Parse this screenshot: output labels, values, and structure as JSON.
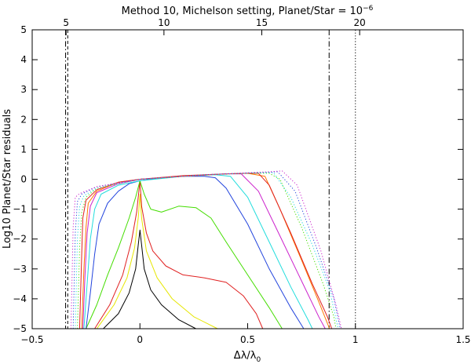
{
  "chart_data": {
    "type": "line",
    "title_main": "Method 10, Michelson setting, Planet/Star = 10",
    "title_exponent": "−6",
    "xlabel_main": "Δλ/λ",
    "xlabel_sub": "0",
    "ylabel": "Log10 Planet/Star residuals",
    "xlim": [
      -0.5,
      1.5
    ],
    "ylim": [
      -5,
      5
    ],
    "x_ticks": [
      -0.5,
      0,
      0.5,
      1,
      1.5
    ],
    "x_tick_labels": [
      "−0.5",
      "0",
      "0.5",
      "1",
      "1.5"
    ],
    "y_ticks": [
      -5,
      -4,
      -3,
      -2,
      -1,
      0,
      1,
      2,
      3,
      4,
      5
    ],
    "y_tick_labels": [
      "−5",
      "−4",
      "−3",
      "−2",
      "−1",
      "0",
      "1",
      "2",
      "3",
      "4",
      "5"
    ],
    "top_axis": {
      "ticks": [
        {
          "value": 5,
          "label": "5",
          "x": -0.3426
        },
        {
          "value": 10,
          "label": "10",
          "x": 0.1115
        },
        {
          "value": 15,
          "label": "15",
          "x": 0.5656
        },
        {
          "value": 20,
          "label": "20",
          "x": 1.0197
        }
      ]
    },
    "vlines": [
      {
        "x": -0.345,
        "style": "dashdot",
        "color": "#000000"
      },
      {
        "x": -0.335,
        "style": "dashed",
        "color": "#000000"
      },
      {
        "x": 0.878,
        "style": "dashdot",
        "color": "#000000"
      },
      {
        "x": 1.0,
        "style": "dotted",
        "color": "#000000"
      }
    ],
    "grid": false,
    "legend": "none",
    "series": [
      {
        "color": "#000000",
        "style": "solid",
        "points": [
          [
            -0.17,
            -5
          ],
          [
            -0.1,
            -4.5
          ],
          [
            -0.05,
            -3.8
          ],
          [
            -0.02,
            -3.0
          ],
          [
            -0.008,
            -2.2
          ],
          [
            0,
            -1.7
          ],
          [
            0.008,
            -2.2
          ],
          [
            0.02,
            -3.0
          ],
          [
            0.05,
            -3.7
          ],
          [
            0.1,
            -4.2
          ],
          [
            0.18,
            -4.7
          ],
          [
            0.26,
            -5
          ]
        ]
      },
      {
        "color": "#e6e600",
        "style": "solid",
        "points": [
          [
            -0.2,
            -5
          ],
          [
            -0.12,
            -4.2
          ],
          [
            -0.06,
            -3.3
          ],
          [
            -0.025,
            -2.3
          ],
          [
            -0.008,
            -1.3
          ],
          [
            0,
            -0.5
          ],
          [
            0.008,
            -1.3
          ],
          [
            0.03,
            -2.4
          ],
          [
            0.08,
            -3.3
          ],
          [
            0.15,
            -4.0
          ],
          [
            0.25,
            -4.6
          ],
          [
            0.36,
            -5
          ]
        ]
      },
      {
        "color": "#e02020",
        "style": "solid",
        "points": [
          [
            -0.21,
            -5
          ],
          [
            -0.14,
            -4.2
          ],
          [
            -0.08,
            -3.2
          ],
          [
            -0.04,
            -2.1
          ],
          [
            -0.015,
            -1.1
          ],
          [
            0,
            -0.05
          ],
          [
            0.008,
            -0.9
          ],
          [
            0.03,
            -1.8
          ],
          [
            0.06,
            -2.4
          ],
          [
            0.12,
            -2.9
          ],
          [
            0.2,
            -3.2
          ],
          [
            0.3,
            -3.3
          ],
          [
            0.4,
            -3.45
          ],
          [
            0.48,
            -3.9
          ],
          [
            0.54,
            -4.5
          ],
          [
            0.57,
            -5
          ]
        ]
      },
      {
        "color": "#44dd00",
        "style": "solid",
        "points": [
          [
            -0.25,
            -5
          ],
          [
            -0.2,
            -4.2
          ],
          [
            -0.15,
            -3.2
          ],
          [
            -0.1,
            -2.3
          ],
          [
            -0.05,
            -1.3
          ],
          [
            -0.02,
            -0.6
          ],
          [
            0,
            -0.05
          ],
          [
            0.02,
            -0.5
          ],
          [
            0.05,
            -1.0
          ],
          [
            0.1,
            -1.1
          ],
          [
            0.18,
            -0.9
          ],
          [
            0.26,
            -0.95
          ],
          [
            0.33,
            -1.3
          ],
          [
            0.4,
            -2.1
          ],
          [
            0.5,
            -3.2
          ],
          [
            0.6,
            -4.3
          ],
          [
            0.66,
            -5
          ]
        ]
      },
      {
        "color": "#2244dd",
        "style": "solid",
        "points": [
          [
            -0.25,
            -5
          ],
          [
            -0.23,
            -3.8
          ],
          [
            -0.21,
            -2.5
          ],
          [
            -0.19,
            -1.5
          ],
          [
            -0.15,
            -0.8
          ],
          [
            -0.1,
            -0.4
          ],
          [
            -0.05,
            -0.15
          ],
          [
            0,
            -0.05
          ],
          [
            0.1,
            0.05
          ],
          [
            0.2,
            0.1
          ],
          [
            0.3,
            0.1
          ],
          [
            0.35,
            0.05
          ],
          [
            0.4,
            -0.3
          ],
          [
            0.5,
            -1.5
          ],
          [
            0.6,
            -3.0
          ],
          [
            0.7,
            -4.3
          ],
          [
            0.76,
            -5
          ]
        ]
      },
      {
        "color": "#22dddd",
        "style": "solid",
        "points": [
          [
            -0.26,
            -5
          ],
          [
            -0.245,
            -3.5
          ],
          [
            -0.23,
            -2.0
          ],
          [
            -0.21,
            -1.0
          ],
          [
            -0.18,
            -0.5
          ],
          [
            -0.1,
            -0.2
          ],
          [
            0,
            -0.05
          ],
          [
            0.2,
            0.1
          ],
          [
            0.35,
            0.15
          ],
          [
            0.42,
            0.1
          ],
          [
            0.5,
            -0.6
          ],
          [
            0.6,
            -2.1
          ],
          [
            0.7,
            -3.6
          ],
          [
            0.78,
            -4.7
          ],
          [
            0.8,
            -5
          ]
        ]
      },
      {
        "color": "#cc22cc",
        "style": "solid",
        "points": [
          [
            -0.265,
            -5
          ],
          [
            -0.255,
            -3.2
          ],
          [
            -0.245,
            -1.8
          ],
          [
            -0.23,
            -0.9
          ],
          [
            -0.2,
            -0.45
          ],
          [
            -0.1,
            -0.15
          ],
          [
            0,
            0
          ],
          [
            0.2,
            0.1
          ],
          [
            0.4,
            0.18
          ],
          [
            0.47,
            0.18
          ],
          [
            0.55,
            -0.4
          ],
          [
            0.65,
            -1.9
          ],
          [
            0.75,
            -3.4
          ],
          [
            0.83,
            -4.6
          ],
          [
            0.86,
            -5
          ]
        ]
      },
      {
        "color": "#ff7700",
        "style": "solid",
        "points": [
          [
            -0.27,
            -5
          ],
          [
            -0.26,
            -3.0
          ],
          [
            -0.25,
            -1.6
          ],
          [
            -0.24,
            -0.8
          ],
          [
            -0.2,
            -0.4
          ],
          [
            -0.1,
            -0.1
          ],
          [
            0,
            0
          ],
          [
            0.2,
            0.1
          ],
          [
            0.4,
            0.18
          ],
          [
            0.5,
            0.2
          ],
          [
            0.58,
            0.1
          ],
          [
            0.65,
            -1.0
          ],
          [
            0.75,
            -2.7
          ],
          [
            0.83,
            -4.1
          ],
          [
            0.88,
            -5
          ]
        ]
      },
      {
        "color": "#e02020",
        "style": "solid",
        "points": [
          [
            -0.28,
            -5
          ],
          [
            -0.27,
            -2.5
          ],
          [
            -0.265,
            -1.3
          ],
          [
            -0.25,
            -0.7
          ],
          [
            -0.2,
            -0.35
          ],
          [
            -0.1,
            -0.1
          ],
          [
            0,
            0
          ],
          [
            0.2,
            0.12
          ],
          [
            0.4,
            0.18
          ],
          [
            0.5,
            0.2
          ],
          [
            0.55,
            0.2
          ],
          [
            0.6,
            -0.2
          ],
          [
            0.7,
            -1.8
          ],
          [
            0.8,
            -3.5
          ],
          [
            0.87,
            -4.6
          ],
          [
            0.89,
            -5
          ]
        ]
      },
      {
        "color": "#44dd00",
        "style": "dotted",
        "points": [
          [
            -0.29,
            -5
          ],
          [
            -0.28,
            -2.3
          ],
          [
            -0.27,
            -1.1
          ],
          [
            -0.25,
            -0.6
          ],
          [
            -0.2,
            -0.3
          ],
          [
            0,
            0
          ],
          [
            0.3,
            0.15
          ],
          [
            0.5,
            0.2
          ],
          [
            0.6,
            0.2
          ],
          [
            0.65,
            0.0
          ],
          [
            0.75,
            -1.6
          ],
          [
            0.85,
            -3.5
          ],
          [
            0.9,
            -4.6
          ],
          [
            0.91,
            -5
          ]
        ]
      },
      {
        "color": "#22dddd",
        "style": "dotted",
        "points": [
          [
            -0.3,
            -5
          ],
          [
            -0.29,
            -2.0
          ],
          [
            -0.28,
            -0.9
          ],
          [
            -0.26,
            -0.55
          ],
          [
            -0.2,
            -0.3
          ],
          [
            0,
            0
          ],
          [
            0.3,
            0.15
          ],
          [
            0.55,
            0.22
          ],
          [
            0.62,
            0.22
          ],
          [
            0.7,
            -0.6
          ],
          [
            0.8,
            -2.2
          ],
          [
            0.88,
            -3.7
          ],
          [
            0.92,
            -5
          ]
        ]
      },
      {
        "color": "#2244dd",
        "style": "dotted",
        "points": [
          [
            -0.31,
            -5
          ],
          [
            -0.3,
            -1.8
          ],
          [
            -0.29,
            -0.75
          ],
          [
            -0.27,
            -0.5
          ],
          [
            -0.2,
            -0.25
          ],
          [
            0,
            0
          ],
          [
            0.3,
            0.15
          ],
          [
            0.58,
            0.23
          ],
          [
            0.64,
            0.25
          ],
          [
            0.72,
            -0.4
          ],
          [
            0.82,
            -2.3
          ],
          [
            0.9,
            -4.0
          ],
          [
            0.93,
            -5
          ]
        ]
      },
      {
        "color": "#cc22cc",
        "style": "dotted",
        "points": [
          [
            -0.32,
            -5
          ],
          [
            -0.31,
            -1.6
          ],
          [
            -0.3,
            -0.6
          ],
          [
            -0.28,
            -0.48
          ],
          [
            -0.2,
            -0.25
          ],
          [
            0,
            0
          ],
          [
            0.3,
            0.15
          ],
          [
            0.6,
            0.25
          ],
          [
            0.66,
            0.28
          ],
          [
            0.73,
            -0.2
          ],
          [
            0.84,
            -2.4
          ],
          [
            0.91,
            -4.2
          ],
          [
            0.935,
            -5
          ]
        ]
      }
    ]
  }
}
